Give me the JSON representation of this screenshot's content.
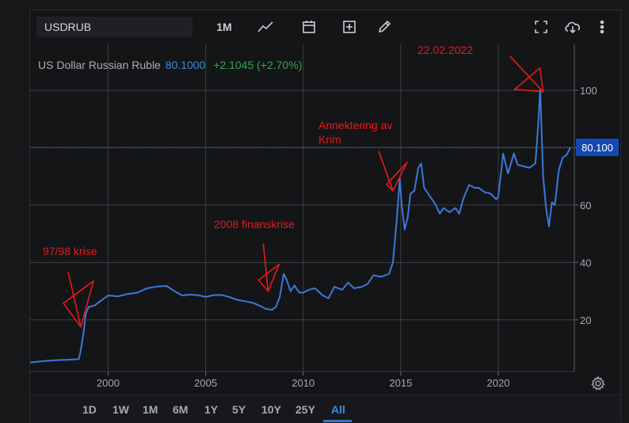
{
  "toolbar": {
    "symbol": "USDRUB",
    "interval": "1M",
    "icons": [
      "line-chart-icon",
      "calendar-icon",
      "add-indicator-icon",
      "draw-pencil-icon",
      "fullscreen-icon",
      "cloud-download-icon",
      "more-menu-icon"
    ]
  },
  "series_info": {
    "name": "US Dollar Russian Ruble",
    "price": "80.1000",
    "change": "+2.1045 (+2.70%)"
  },
  "range_buttons": [
    "1D",
    "1W",
    "1M",
    "6M",
    "1Y",
    "5Y",
    "10Y",
    "25Y",
    "All"
  ],
  "active_range": "All",
  "colors": {
    "line": "#3c78d8",
    "annotation": "#e8191c",
    "last_price_bg": "#1449b4",
    "positive": "#2fa84f",
    "price_text": "#3c8be0"
  },
  "chart_data": {
    "type": "line",
    "title": "",
    "xlabel": "",
    "ylabel": "",
    "xlim": [
      1996,
      2023.9
    ],
    "ylim": [
      2,
      116
    ],
    "x_ticks": [
      2000,
      2005,
      2010,
      2015,
      2020
    ],
    "x_tick_labels": [
      "2000",
      "2005",
      "2010",
      "2015",
      "2020"
    ],
    "y_ticks": [
      20,
      40,
      60,
      80,
      100
    ],
    "y_tick_labels": [
      "20",
      "40",
      "60",
      "80",
      "100"
    ],
    "grid": true,
    "y_axis_side": "right",
    "last_price_label": "80.100",
    "series": [
      {
        "x": [
          1996.0,
          1996.5,
          1997.0,
          1997.5,
          1998.0,
          1998.5,
          1998.6,
          1998.75,
          1998.85,
          1999.0,
          1999.3,
          1999.6,
          2000.0,
          2000.5,
          2001.0,
          2001.5,
          2002.0,
          2002.5,
          2003.0,
          2003.4,
          2003.8,
          2004.2,
          2004.6,
          2005.0,
          2005.4,
          2005.8,
          2006.2,
          2006.6,
          2007.0,
          2007.4,
          2007.8,
          2008.1,
          2008.4,
          2008.6,
          2008.8,
          2009.0,
          2009.15,
          2009.35,
          2009.55,
          2009.8,
          2010.0,
          2010.3,
          2010.6,
          2011.0,
          2011.3,
          2011.6,
          2012.0,
          2012.3,
          2012.6,
          2013.0,
          2013.3,
          2013.6,
          2014.0,
          2014.2,
          2014.4,
          2014.6,
          2014.8,
          2014.95,
          2015.05,
          2015.2,
          2015.35,
          2015.5,
          2015.7,
          2015.9,
          2016.05,
          2016.2,
          2016.5,
          2016.8,
          2017.0,
          2017.2,
          2017.5,
          2017.8,
          2018.0,
          2018.2,
          2018.5,
          2018.8,
          2019.0,
          2019.3,
          2019.6,
          2019.9,
          2020.0,
          2020.2,
          2020.25,
          2020.5,
          2020.8,
          2021.0,
          2021.3,
          2021.6,
          2021.9,
          2022.05,
          2022.15,
          2022.3,
          2022.45,
          2022.6,
          2022.75,
          2022.9,
          2023.1,
          2023.3,
          2023.5,
          2023.7
        ],
        "y": [
          5.1,
          5.5,
          5.8,
          6.0,
          6.1,
          6.3,
          9.5,
          16.0,
          22.0,
          24.5,
          25.0,
          26.5,
          28.5,
          28.2,
          29.0,
          29.5,
          31.0,
          31.6,
          31.8,
          30.0,
          28.5,
          28.8,
          28.6,
          28.0,
          28.6,
          28.7,
          28.0,
          27.0,
          26.5,
          26.0,
          24.8,
          23.8,
          23.5,
          24.5,
          28.0,
          36.0,
          34.0,
          30.0,
          32.0,
          29.5,
          29.5,
          30.5,
          31.0,
          28.5,
          27.5,
          31.5,
          30.5,
          33.0,
          31.0,
          31.5,
          32.5,
          35.5,
          35.0,
          35.5,
          36.0,
          40.0,
          55.0,
          69.0,
          60.0,
          51.5,
          55.5,
          64.0,
          65.0,
          73.0,
          74.5,
          66.0,
          63.0,
          60.0,
          57.0,
          59.0,
          57.5,
          59.0,
          57.0,
          62.0,
          67.0,
          66.0,
          66.0,
          64.5,
          64.0,
          62.0,
          63.0,
          74.5,
          78.0,
          71.0,
          78.0,
          74.0,
          73.5,
          73.0,
          74.5,
          88.0,
          100.5,
          70.0,
          59.0,
          52.5,
          61.0,
          60.0,
          72.0,
          76.5,
          77.5,
          80.1
        ]
      }
    ],
    "annotations": [
      {
        "text": "97/98 krise",
        "x": 1998.6,
        "y": 17.5
      },
      {
        "text": "2008 finanskrise",
        "x": 2008.2,
        "y": 30.0
      },
      {
        "text": "Annektering av",
        "text2": "Krim",
        "x": 2014.6,
        "y": 65.0
      },
      {
        "text": "22.02.2022",
        "x": 2022.3,
        "y": 99.5
      }
    ]
  }
}
